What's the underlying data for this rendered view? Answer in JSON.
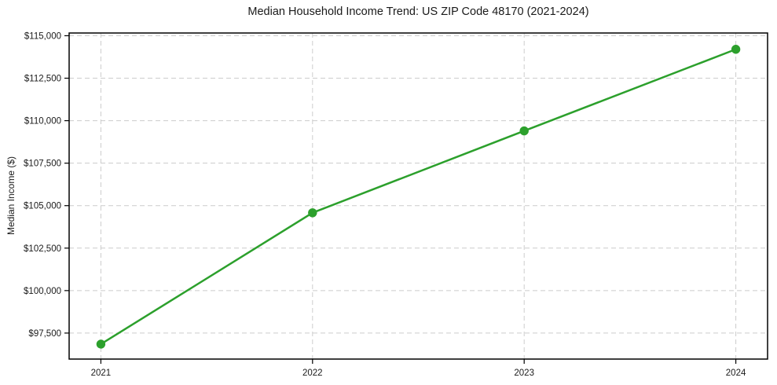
{
  "page": {
    "background_color": "#ffffff"
  },
  "chart_data": {
    "type": "line",
    "title": "Median Household Income Trend: US ZIP Code 48170 (2021-2024)",
    "xlabel": "",
    "ylabel": "Median Income ($)",
    "x": [
      2021,
      2022,
      2023,
      2024
    ],
    "values": [
      96850,
      104580,
      109400,
      114200
    ],
    "xticks": [
      2021,
      2022,
      2023,
      2024
    ],
    "xtick_labels": [
      "2021",
      "2022",
      "2023",
      "2024"
    ],
    "yticks": [
      97500,
      100000,
      102500,
      105000,
      107500,
      110000,
      112500,
      115000
    ],
    "ytick_labels": [
      "$97,500",
      "$100,000",
      "$102,500",
      "$105,000",
      "$107,500",
      "$110,000",
      "$112,500",
      "$115,000"
    ],
    "xlim": [
      2020.85,
      2024.15
    ],
    "ylim": [
      95970,
      115160
    ],
    "grid": true,
    "grid_color": "#cccccc",
    "grid_dash": "6 4",
    "axis_color": "#000000",
    "tick_label_color": "#1a1a1a",
    "line_color": "#2ca02c",
    "line_width": 2.5,
    "marker": "circle",
    "marker_size": 5.7,
    "legend_position": "none"
  }
}
